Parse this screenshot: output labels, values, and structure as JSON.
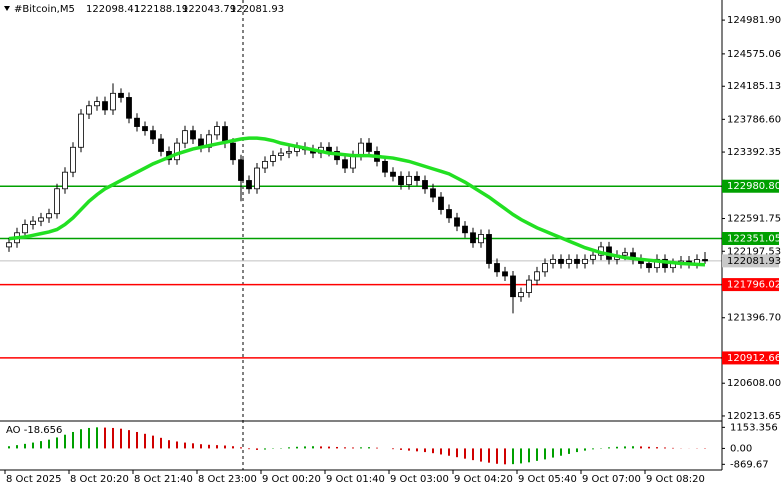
{
  "chart_data": {
    "type": "candlestick",
    "symbol": "#Bitcoin,M5",
    "x_labels": [
      "8 Oct 2025",
      "8 Oct 20:20",
      "8 Oct 21:40",
      "8 Oct 23:00",
      "9 Oct 00:20",
      "9 Oct 01:40",
      "9 Oct 03:00",
      "9 Oct 04:20",
      "9 Oct 05:40",
      "9 Oct 07:00",
      "9 Oct 08:20"
    ],
    "open": [
      122250,
      122300,
      122420,
      122520,
      122560,
      122600,
      122650,
      122950,
      123150,
      123450,
      123850,
      123950,
      124000,
      123900,
      124100,
      124050,
      123800,
      123700,
      123650,
      123550,
      123400,
      123300,
      123500,
      123650,
      123550,
      123450,
      123600,
      123700,
      123500,
      123300,
      123050,
      122950,
      123200,
      123280,
      123350,
      123380,
      123400,
      123450,
      123420,
      123380,
      123450,
      123400,
      123300,
      123200,
      123350,
      123500,
      123400,
      123280,
      123150,
      123100,
      123000,
      123100,
      123050,
      122950,
      122850,
      122700,
      122600,
      122500,
      122420,
      122300,
      122400,
      122050,
      121950,
      121900,
      121650,
      121700,
      121850,
      121950,
      122050,
      122100,
      122050,
      122100,
      122050,
      122100,
      122150,
      122250,
      122100,
      122150,
      122180,
      122100,
      122050,
      122000,
      122100,
      122000,
      122050,
      122080,
      122050,
      122098.41
    ],
    "high": [
      122360,
      122480,
      122580,
      122620,
      122660,
      122710,
      123010,
      123210,
      123510,
      123910,
      124010,
      124060,
      124060,
      124220,
      124160,
      124110,
      123860,
      123760,
      123710,
      123610,
      123460,
      123560,
      123710,
      123710,
      123610,
      123660,
      123760,
      123760,
      123560,
      123360,
      123110,
      123260,
      123340,
      123410,
      123440,
      123460,
      123510,
      123510,
      123480,
      123510,
      123510,
      123460,
      123360,
      123410,
      123560,
      123560,
      123460,
      123340,
      123210,
      123160,
      123160,
      123160,
      123110,
      123010,
      122910,
      122760,
      122660,
      122560,
      122480,
      122460,
      122460,
      122110,
      122010,
      121960,
      121760,
      121910,
      122010,
      122110,
      122160,
      122160,
      122160,
      122160,
      122160,
      122210,
      122310,
      122310,
      122210,
      122240,
      122240,
      122160,
      122110,
      122160,
      122160,
      122110,
      122140,
      122140,
      122160,
      122188.19
    ],
    "low": [
      122190,
      122240,
      122360,
      122460,
      122500,
      122540,
      122590,
      122890,
      123090,
      123390,
      123790,
      123890,
      123840,
      123840,
      123990,
      123740,
      123640,
      123590,
      123490,
      123340,
      123240,
      123240,
      123440,
      123490,
      123390,
      123390,
      123540,
      123440,
      123240,
      122800,
      122890,
      122890,
      123140,
      123220,
      123290,
      123320,
      123340,
      123360,
      123320,
      123320,
      123340,
      123240,
      123140,
      123140,
      123290,
      123340,
      123220,
      123090,
      123040,
      122940,
      122940,
      122990,
      122890,
      122790,
      122640,
      122540,
      122440,
      122360,
      122240,
      122240,
      121990,
      121890,
      121840,
      121450,
      121590,
      121640,
      121790,
      121890,
      121990,
      121990,
      121990,
      121990,
      121990,
      122040,
      122090,
      122040,
      122040,
      122090,
      122040,
      121990,
      121940,
      121940,
      121940,
      121940,
      121990,
      121990,
      121990,
      122043.79
    ],
    "close": [
      122300,
      122420,
      122520,
      122560,
      122600,
      122650,
      122950,
      123150,
      123450,
      123850,
      123950,
      124000,
      123900,
      124100,
      124050,
      123800,
      123700,
      123650,
      123550,
      123400,
      123300,
      123500,
      123650,
      123550,
      123450,
      123600,
      123700,
      123500,
      123300,
      123050,
      122950,
      123200,
      123280,
      123350,
      123380,
      123400,
      123450,
      123420,
      123380,
      123450,
      123400,
      123300,
      123200,
      123350,
      123500,
      123400,
      123280,
      123150,
      123100,
      123000,
      123100,
      123050,
      122950,
      122850,
      122700,
      122600,
      122500,
      122420,
      122300,
      122400,
      122050,
      121950,
      121900,
      121650,
      121700,
      121850,
      121950,
      122050,
      122100,
      122050,
      122100,
      122050,
      122100,
      122150,
      122250,
      122100,
      122150,
      122180,
      122100,
      122050,
      122000,
      122100,
      122000,
      122050,
      122080,
      122050,
      122098.41,
      122081.93
    ],
    "ma": {
      "color": "#22e022",
      "values": [
        122350,
        122360,
        122370,
        122390,
        122410,
        122430,
        122460,
        122520,
        122600,
        122700,
        122800,
        122880,
        122950,
        123000,
        123050,
        123100,
        123150,
        123200,
        123250,
        123290,
        123330,
        123370,
        123400,
        123430,
        123450,
        123470,
        123490,
        123510,
        123530,
        123550,
        123560,
        123560,
        123550,
        123530,
        123500,
        123480,
        123460,
        123440,
        123420,
        123400,
        123380,
        123370,
        123360,
        123350,
        123350,
        123350,
        123340,
        123330,
        123320,
        123300,
        123280,
        123250,
        123220,
        123190,
        123160,
        123130,
        123080,
        123030,
        122970,
        122910,
        122850,
        122780,
        122710,
        122640,
        122580,
        122530,
        122480,
        122440,
        122400,
        122360,
        122320,
        122280,
        122240,
        122210,
        122180,
        122160,
        122140,
        122120,
        122110,
        122100,
        122090,
        122080,
        122070,
        122060,
        122050,
        122045,
        122040,
        122035
      ]
    },
    "levels": [
      {
        "value": 122980.8,
        "label": "122980.80",
        "color": "#00a000"
      },
      {
        "value": 122351.05,
        "color": "#00a000"
      },
      {
        "value": 121796.02,
        "color": "#ff0000"
      },
      {
        "value": 120912.66,
        "color": "#ff0000"
      }
    ],
    "ylim": [
      120165,
      125224
    ],
    "yticks": [
      {
        "value": 124981.9,
        "label": "124981.90"
      },
      124575.06,
      124185.13,
      {
        "value": 123786.6,
        "label": "123786.60"
      },
      123392.35,
      122591.75,
      122197.53,
      {
        "value": 121396.7,
        "label": "121396.70"
      },
      {
        "value": 120608,
        "label": "120608.00"
      },
      120213.65
    ],
    "ao": {
      "name": "AO",
      "value": -18.656,
      "up_color": "#00a000",
      "down_color": "#d00000",
      "values": [
        120,
        180,
        250,
        320,
        400,
        480,
        600,
        750,
        900,
        1050,
        1120,
        1153.356,
        1140,
        1120,
        1080,
        1000,
        900,
        800,
        700,
        580,
        450,
        380,
        320,
        280,
        230,
        200,
        180,
        160,
        120,
        60,
        -40,
        -80,
        -60,
        -20,
        20,
        60,
        90,
        110,
        120,
        110,
        100,
        80,
        60,
        50,
        60,
        70,
        40,
        0,
        -40,
        -80,
        -120,
        -160,
        -200,
        -260,
        -330,
        -400,
        -480,
        -560,
        -640,
        -720,
        -780,
        -840,
        -869.67,
        -860,
        -820,
        -760,
        -680,
        -600,
        -500,
        -400,
        -300,
        -200,
        -120,
        -50,
        20,
        60,
        90,
        110,
        120,
        110,
        90,
        70,
        50,
        30,
        10,
        -5,
        -12,
        -18.656
      ],
      "ylim": [
        -1180,
        1500
      ],
      "yticks": [
        1153.356,
        {
          "value": 0,
          "label": "0.00"
        },
        -869.67
      ]
    }
  }
}
